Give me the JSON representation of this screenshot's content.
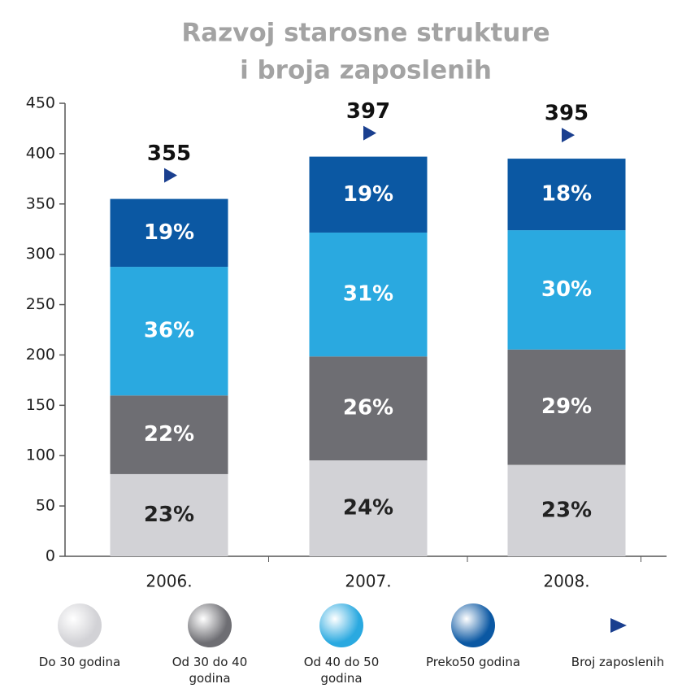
{
  "chart_data": {
    "type": "bar",
    "stacked": true,
    "title": [
      "Razvoj starosne strukture",
      "i broja zaposlenih"
    ],
    "categories": [
      "2006.",
      "2007.",
      "2008."
    ],
    "series": [
      {
        "name": "Do 30 godina",
        "color": "#d2d2d6",
        "label_color": "#222222",
        "values": [
          23,
          24,
          23
        ],
        "value_labels": [
          "23%",
          "24%",
          "23%"
        ]
      },
      {
        "name": "Od 30 do 40 godina",
        "color": "#6e6e73",
        "label_color": "#ffffff",
        "values": [
          22,
          26,
          29
        ],
        "value_labels": [
          "22%",
          "26%",
          "29%"
        ]
      },
      {
        "name": "Od 40 do 50 godina",
        "color": "#2aa9e0",
        "label_color": "#ffffff",
        "values": [
          36,
          31,
          30
        ],
        "value_labels": [
          "36%",
          "31%",
          "30%"
        ]
      },
      {
        "name": "Preko50 godina",
        "color": "#0b58a3",
        "label_color": "#ffffff",
        "values": [
          19,
          19,
          18
        ],
        "value_labels": [
          "19%",
          "19%",
          "18%"
        ]
      },
      {
        "name": "Broj zaposlenih",
        "type": "marker",
        "color": "#1a3f8f",
        "values": [
          355,
          397,
          395
        ]
      }
    ],
    "ylim": [
      0,
      450
    ],
    "yticks": [
      0,
      50,
      100,
      150,
      200,
      250,
      300,
      350,
      400,
      450
    ]
  }
}
